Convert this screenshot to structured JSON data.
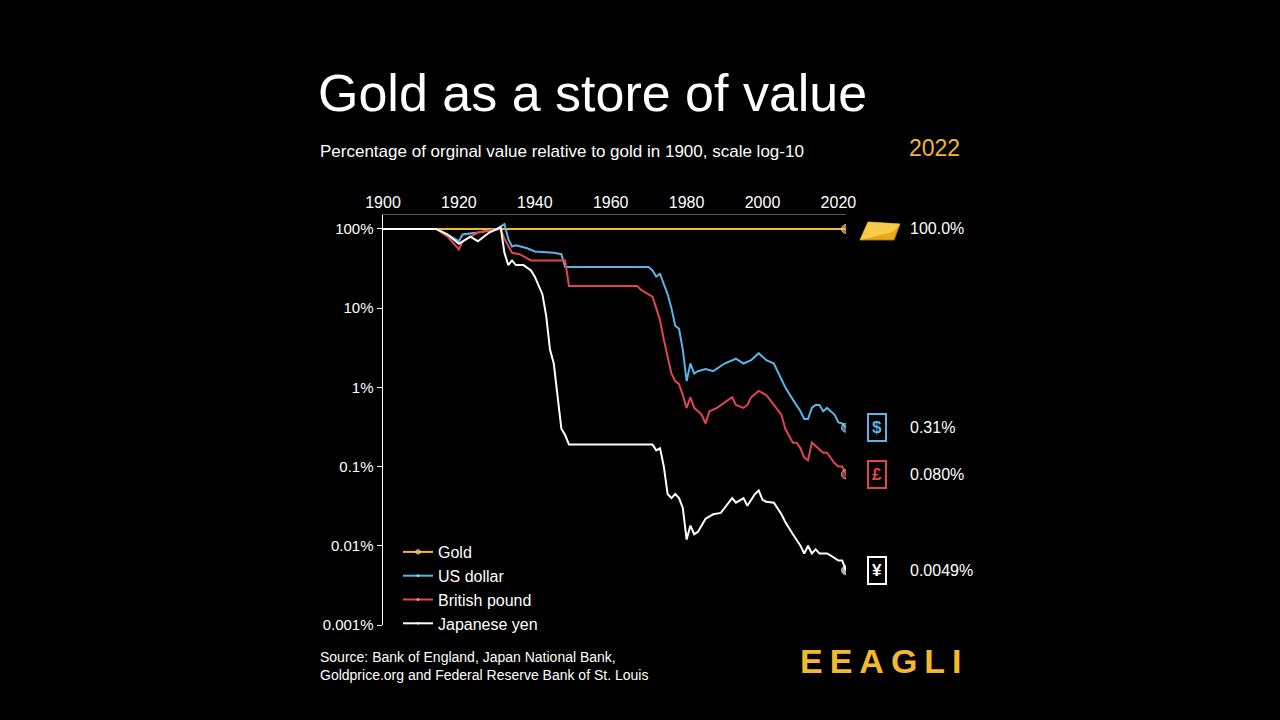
{
  "chart_data": {
    "type": "line",
    "title": "Gold as a store of value",
    "subtitle": "Percentage of orginal value relative to gold in 1900, scale log-10",
    "year_label": "2022",
    "source": [
      "Source: Bank of England, Japan National Bank,",
      "Goldprice.org and Federal Reserve Bank of St. Louis"
    ],
    "brand": "EEAGLI",
    "log": "y",
    "grid": false,
    "legend": "lower left",
    "xlim": [
      1900,
      2022
    ],
    "xticks": [
      1900,
      1920,
      1940,
      1960,
      1980,
      2000,
      2020
    ],
    "ylim": [
      0.001,
      150
    ],
    "yticks": [
      {
        "value": 100,
        "label": "100%"
      },
      {
        "value": 10,
        "label": "10%"
      },
      {
        "value": 1,
        "label": "1%"
      },
      {
        "value": 0.1,
        "label": "0.1%"
      },
      {
        "value": 0.01,
        "label": "0.01%"
      },
      {
        "value": 0.001,
        "label": "0.001%"
      }
    ],
    "series": [
      {
        "name": "Gold",
        "color": "#f5b82e",
        "x": [
          1900,
          2022
        ],
        "values": [
          100,
          100
        ],
        "end_label": "100.0%"
      },
      {
        "name": "US dollar",
        "color": "#5ab4e5",
        "symbol": "$",
        "x": [
          1900,
          1914,
          1915,
          1917,
          1920,
          1921,
          1925,
          1928,
          1930,
          1932,
          1933,
          1934,
          1935,
          1938,
          1940,
          1945,
          1947,
          1948,
          1970,
          1971,
          1972,
          1973,
          1974,
          1975,
          1976,
          1977,
          1978,
          1979,
          1980,
          1981,
          1982,
          1983,
          1985,
          1987,
          1990,
          1993,
          1995,
          1997,
          1999,
          2001,
          2003,
          2005,
          2006,
          2008,
          2010,
          2011,
          2012,
          2013,
          2014,
          2015,
          2016,
          2017,
          2018,
          2019,
          2020,
          2021,
          2022
        ],
        "values": [
          100,
          100,
          95,
          85,
          70,
          85,
          90,
          95,
          100,
          115,
          75,
          60,
          62,
          57,
          52,
          50,
          48,
          33,
          33,
          30,
          25,
          27,
          20,
          15,
          10,
          6,
          5.5,
          3,
          1.2,
          2,
          1.5,
          1.6,
          1.7,
          1.6,
          2,
          2.3,
          2,
          2.2,
          2.7,
          2.2,
          2,
          1.3,
          1,
          0.7,
          0.5,
          0.4,
          0.4,
          0.55,
          0.6,
          0.6,
          0.5,
          0.55,
          0.5,
          0.45,
          0.36,
          0.35,
          0.31
        ],
        "end_label": "0.31%"
      },
      {
        "name": "British pound",
        "color": "#e0474c",
        "symbol": "£",
        "x": [
          1900,
          1914,
          1917,
          1920,
          1921,
          1925,
          1928,
          1931,
          1932,
          1933,
          1934,
          1936,
          1939,
          1946,
          1948,
          1949,
          1967,
          1968,
          1970,
          1971,
          1972,
          1973,
          1974,
          1975,
          1976,
          1977,
          1978,
          1979,
          1980,
          1981,
          1982,
          1983,
          1984,
          1985,
          1986,
          1988,
          1990,
          1992,
          1993,
          1995,
          1996,
          1997,
          1999,
          2000,
          2001,
          2003,
          2005,
          2006,
          2008,
          2009,
          2010,
          2011,
          2012,
          2013,
          2014,
          2016,
          2017,
          2018,
          2019,
          2020,
          2021,
          2022
        ],
        "values": [
          100,
          100,
          80,
          55,
          70,
          90,
          95,
          100,
          75,
          60,
          50,
          48,
          40,
          40,
          40,
          19,
          19,
          17,
          15,
          14,
          10,
          7,
          4,
          2.5,
          1.5,
          1.2,
          1.1,
          0.8,
          0.55,
          0.75,
          0.55,
          0.5,
          0.45,
          0.35,
          0.5,
          0.55,
          0.65,
          0.75,
          0.6,
          0.55,
          0.6,
          0.75,
          0.9,
          0.85,
          0.8,
          0.6,
          0.45,
          0.3,
          0.2,
          0.2,
          0.17,
          0.13,
          0.12,
          0.2,
          0.18,
          0.15,
          0.15,
          0.13,
          0.11,
          0.1,
          0.1,
          0.08
        ],
        "end_label": "0.080%"
      },
      {
        "name": "Japanese yen",
        "color": "#ffffff",
        "symbol": "¥",
        "x": [
          1900,
          1914,
          1917,
          1920,
          1923,
          1925,
          1928,
          1930,
          1931,
          1932,
          1933,
          1934,
          1935,
          1937,
          1939,
          1940,
          1942,
          1943,
          1944,
          1945,
          1946,
          1947,
          1948,
          1949,
          1971,
          1972,
          1973,
          1974,
          1975,
          1976,
          1977,
          1978,
          1979,
          1980,
          1981,
          1982,
          1983,
          1985,
          1987,
          1989,
          1990,
          1992,
          1993,
          1995,
          1996,
          1998,
          1999,
          2000,
          2001,
          2003,
          2005,
          2006,
          2008,
          2010,
          2011,
          2012,
          2013,
          2014,
          2015,
          2017,
          2018,
          2019,
          2020,
          2021,
          2022
        ],
        "values": [
          100,
          100,
          85,
          65,
          80,
          70,
          90,
          100,
          105,
          50,
          35,
          40,
          35,
          35,
          30,
          25,
          15,
          8,
          3,
          2,
          0.7,
          0.3,
          0.25,
          0.19,
          0.19,
          0.16,
          0.17,
          0.1,
          0.045,
          0.04,
          0.045,
          0.04,
          0.03,
          0.012,
          0.018,
          0.014,
          0.015,
          0.022,
          0.025,
          0.026,
          0.03,
          0.04,
          0.035,
          0.04,
          0.032,
          0.045,
          0.05,
          0.038,
          0.036,
          0.035,
          0.025,
          0.02,
          0.014,
          0.01,
          0.008,
          0.01,
          0.008,
          0.009,
          0.008,
          0.008,
          0.0075,
          0.007,
          0.0065,
          0.0065,
          0.0049
        ],
        "end_label": "0.0049%"
      }
    ]
  }
}
